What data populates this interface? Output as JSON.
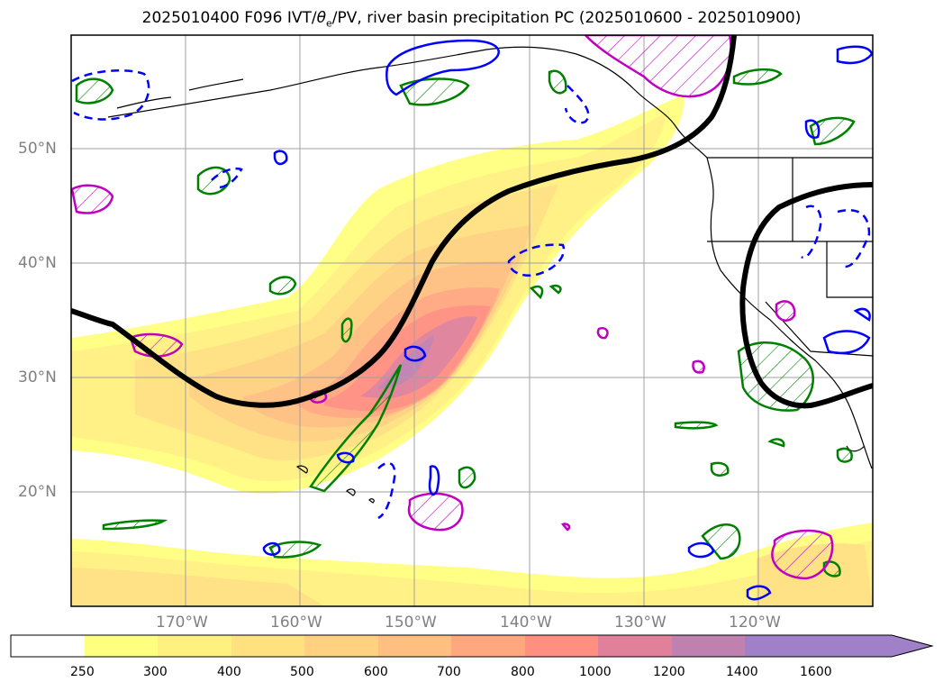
{
  "title": {
    "prefix": "2025010400 F096 IVT/",
    "theta": "θ",
    "theta_sub": "e",
    "suffix": "/PV, river basin precipitation PC (2025010600 - 2025010900)"
  },
  "map": {
    "lat_labels": [
      "50°N",
      "40°N",
      "30°N",
      "20°N"
    ],
    "lon_labels": [
      "170°W",
      "160°W",
      "150°W",
      "140°W",
      "130°W",
      "120°W"
    ],
    "contour_colors": {
      "theta_e": "#000000",
      "pv_solid": "#0000ff",
      "pv_dashed": "#0000ff",
      "precip_green": "#008000",
      "precip_magenta": "#c000c0"
    },
    "grid": true
  },
  "colorbar": {
    "ticks": [
      "250",
      "300",
      "400",
      "500",
      "600",
      "700",
      "800",
      "1000",
      "1200",
      "1400",
      "1600"
    ],
    "colors": [
      "#ffffff",
      "#ffff80",
      "#fff180",
      "#ffe180",
      "#ffd180",
      "#ffbf80",
      "#ffa880",
      "#ff8f80",
      "#e0809a",
      "#c080b0",
      "#a080c8"
    ],
    "extend": "max"
  },
  "chart_data": {
    "type": "map",
    "title": "2025010400 F096 IVT/θe/PV, river basin precipitation PC (2025010600 - 2025010900)",
    "lon_range": [
      -180,
      -110
    ],
    "lat_range": [
      10,
      60
    ],
    "gridlines_lon": [
      -170,
      -160,
      -150,
      -140,
      -130,
      -120
    ],
    "gridlines_lat": [
      20,
      30,
      40,
      50
    ],
    "ivt_levels": [
      250,
      300,
      400,
      500,
      600,
      700,
      800,
      1000,
      1200,
      1400,
      1600
    ],
    "ivt_max_location": [
      -150,
      31
    ]
  }
}
